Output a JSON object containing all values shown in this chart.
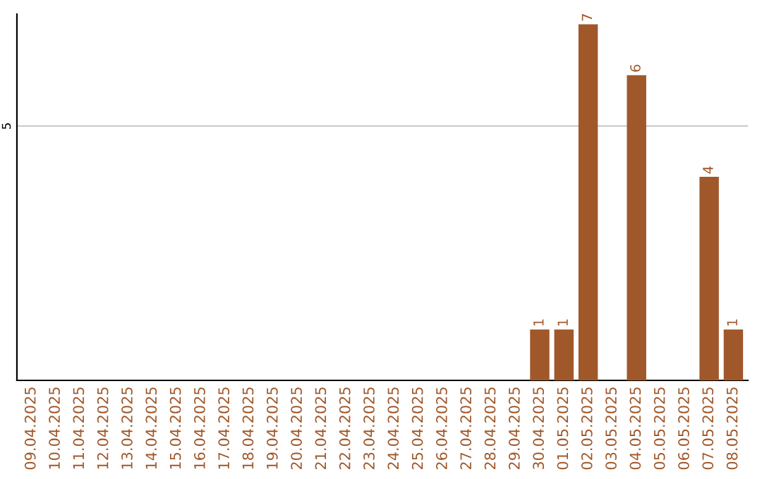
{
  "chart_data": {
    "type": "bar",
    "categories": [
      "09.04.2025",
      "10.04.2025",
      "11.04.2025",
      "12.04.2025",
      "13.04.2025",
      "14.04.2025",
      "15.04.2025",
      "16.04.2025",
      "17.04.2025",
      "18.04.2025",
      "19.04.2025",
      "20.04.2025",
      "21.04.2025",
      "22.04.2025",
      "23.04.2025",
      "24.04.2025",
      "25.04.2025",
      "26.04.2025",
      "27.04.2025",
      "28.04.2025",
      "29.04.2025",
      "30.04.2025",
      "01.05.2025",
      "02.05.2025",
      "03.05.2025",
      "04.05.2025",
      "05.05.2025",
      "06.05.2025",
      "07.05.2025",
      "08.05.2025"
    ],
    "values": [
      null,
      null,
      null,
      null,
      null,
      null,
      null,
      null,
      null,
      null,
      null,
      null,
      null,
      null,
      null,
      null,
      null,
      null,
      null,
      null,
      null,
      1,
      1,
      7,
      null,
      6,
      null,
      null,
      4,
      1
    ],
    "color": "#a0582a",
    "ylim": [
      0,
      7.2
    ],
    "yticks": [
      5
    ],
    "grid": "y",
    "data_labels": true
  }
}
